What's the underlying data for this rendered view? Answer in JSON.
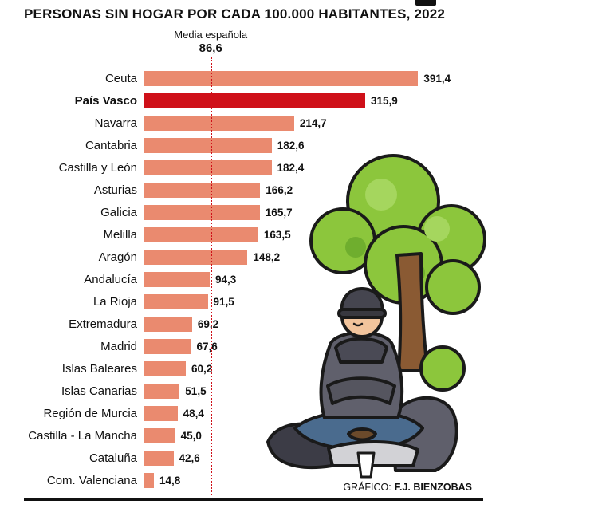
{
  "title": "PERSONAS SIN HOGAR POR CADA 100.000 HABITANTES, 2022",
  "average": {
    "label": "Media española",
    "value_label": "86,6"
  },
  "credit": {
    "prefix": "GRÁFICO:",
    "author": "F.J. BIENZOBAS"
  },
  "colors": {
    "bar": "#EA8A6F",
    "highlight_bar": "#CF1019",
    "average_line": "#CF1019",
    "rule": "#111111"
  },
  "illustration_icon": "homeless-person-under-tree-illustration",
  "chart_data": {
    "type": "bar",
    "orientation": "horizontal",
    "title": "PERSONAS SIN HOGAR POR CADA 100.000 HABITANTES, 2022",
    "categories": [
      "Ceuta",
      "País Vasco",
      "Navarra",
      "Cantabria",
      "Castilla y León",
      "Asturias",
      "Galicia",
      "Melilla",
      "Aragón",
      "Andalucía",
      "La Rioja",
      "Extremadura",
      "Madrid",
      "Islas Baleares",
      "Islas Canarias",
      "Región de Murcia",
      "Castilla - La Mancha",
      "Cataluña",
      "Com. Valenciana"
    ],
    "values": [
      391.4,
      315.9,
      214.7,
      182.6,
      182.4,
      166.2,
      165.7,
      163.5,
      148.2,
      94.3,
      91.5,
      69.2,
      67.6,
      60.2,
      51.5,
      48.4,
      45.0,
      42.6,
      14.8
    ],
    "value_labels": [
      "391,4",
      "315,9",
      "214,7",
      "182,6",
      "182,4",
      "166,2",
      "165,7",
      "163,5",
      "148,2",
      "94,3",
      "91,5",
      "69,2",
      "67,6",
      "60,2",
      "51,5",
      "48,4",
      "45,0",
      "42,6",
      "14,8"
    ],
    "highlight_category": "País Vasco",
    "average": {
      "label": "Media española",
      "value": 86.6
    },
    "xlim": [
      0,
      400
    ],
    "grid": false,
    "legend": false,
    "xlabel": "",
    "ylabel": ""
  }
}
